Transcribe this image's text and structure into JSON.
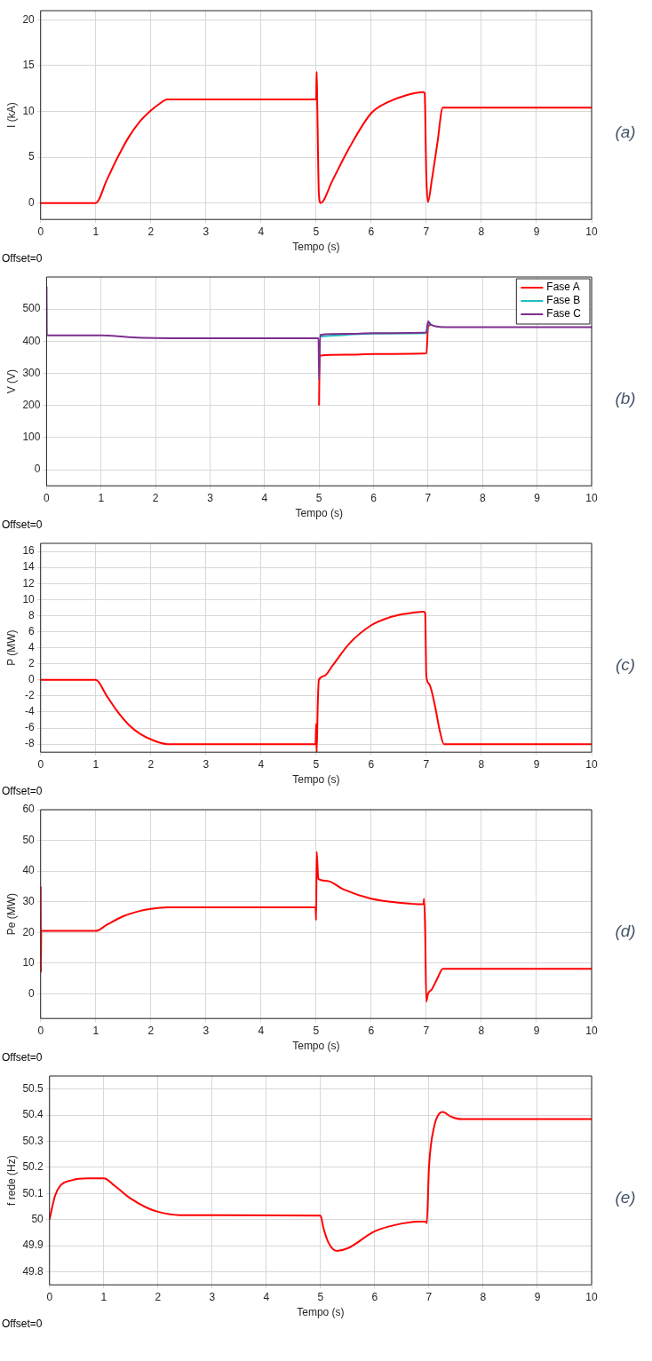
{
  "chart_data": [
    {
      "type": "line",
      "xlabel": "Tempo (s)",
      "ylabel": "I (kA)",
      "annotations": [
        "Offset=0",
        "(a)"
      ],
      "xlim": [
        0,
        10
      ],
      "xticks": [
        0,
        1,
        2,
        3,
        4,
        5,
        6,
        7,
        8,
        9,
        10
      ],
      "ylim": [
        -1.8,
        21
      ],
      "yticks": [
        0,
        5,
        10,
        15,
        20
      ],
      "grid": true,
      "series": [
        {
          "color": "#ff0000",
          "x": [
            0,
            1,
            1.2,
            1.4,
            1.6,
            1.8,
            2,
            2.15,
            2.3,
            5,
            5.01,
            5.02,
            5.05,
            5.08,
            5.3,
            5.6,
            6,
            6.3,
            6.6,
            6.95,
            6.97,
            7.0,
            7.03,
            7.1,
            7.2,
            7.3,
            10
          ],
          "values": [
            0,
            0,
            2.5,
            5,
            7.2,
            8.9,
            10.1,
            10.8,
            11.3,
            11.3,
            14.3,
            11,
            1,
            0,
            2.5,
            6,
            9.8,
            11,
            11.7,
            12.1,
            12,
            3,
            0.1,
            2.5,
            6.5,
            10.4,
            10.4
          ]
        }
      ]
    },
    {
      "type": "line",
      "xlabel": "Tempo (s)",
      "ylabel": "V (V)",
      "annotations": [
        "Offset=0",
        "(b)"
      ],
      "xlim": [
        0,
        10
      ],
      "xticks": [
        0,
        1,
        2,
        3,
        4,
        5,
        6,
        7,
        8,
        9,
        10
      ],
      "ylim": [
        -50,
        600
      ],
      "yticks": [
        0,
        100,
        200,
        300,
        400,
        500
      ],
      "grid": true,
      "legend": "top right",
      "series": [
        {
          "name": "Fase A",
          "color": "#ff0000",
          "x": [
            5,
            5.01,
            5.5,
            6,
            6.97,
            7.0,
            7.05
          ],
          "values": [
            200,
            355,
            358,
            360,
            362,
            445,
            452
          ]
        },
        {
          "name": "Fase B",
          "color": "#1fbfbf",
          "x": [
            5.02,
            5.5,
            6,
            6.97,
            7.0,
            7.05
          ],
          "values": [
            415,
            420,
            424,
            425,
            455,
            452
          ]
        },
        {
          "name": "Fase C",
          "color": "#7e2f8e",
          "x": [
            0,
            0.005,
            1,
            1.5,
            2,
            2.5,
            4.99,
            5,
            5.02,
            5.5,
            6,
            6.97,
            6.98,
            7.0,
            7.05,
            7.3,
            10
          ],
          "values": [
            570,
            418,
            418,
            413,
            410,
            409,
            409,
            280,
            420,
            423,
            425,
            427,
            440,
            462,
            452,
            444,
            444
          ]
        }
      ]
    },
    {
      "type": "line",
      "xlabel": "Tempo (s)",
      "ylabel": "P (MW)",
      "annotations": [
        "Offset=0",
        "(c)"
      ],
      "xlim": [
        0,
        10
      ],
      "xticks": [
        0,
        1,
        2,
        3,
        4,
        5,
        6,
        7,
        8,
        9,
        10
      ],
      "ylim": [
        -9,
        17
      ],
      "yticks": [
        -8,
        -6,
        -4,
        -2,
        0,
        2,
        4,
        6,
        8,
        10,
        12,
        14,
        16
      ],
      "grid": true,
      "series": [
        {
          "color": "#ff0000",
          "x": [
            0,
            1,
            1.2,
            1.4,
            1.6,
            1.8,
            2,
            2.3,
            4.99,
            5.0,
            5.01,
            5.03,
            5.05,
            5.15,
            5.3,
            5.6,
            6,
            6.3,
            6.6,
            6.95,
            6.98,
            7.0,
            7.05,
            7.15,
            7.25,
            7.32,
            10
          ],
          "values": [
            0,
            0,
            -2,
            -4,
            -5.6,
            -6.7,
            -7.4,
            -8,
            -8,
            -5.5,
            -9,
            -3,
            0,
            0.5,
            1.8,
            4.5,
            6.8,
            7.7,
            8.2,
            8.5,
            8.3,
            0.5,
            -0.5,
            -3,
            -6.5,
            -8,
            -8
          ]
        }
      ]
    },
    {
      "type": "line",
      "xlabel": "Tempo (s)",
      "ylabel": "Pe (MW)",
      "annotations": [
        "Offset=0",
        "(d)"
      ],
      "xlim": [
        0,
        10
      ],
      "xticks": [
        0,
        1,
        2,
        3,
        4,
        5,
        6,
        7,
        8,
        9,
        10
      ],
      "ylim": [
        -8,
        60
      ],
      "yticks": [
        0,
        10,
        20,
        30,
        40,
        50,
        60
      ],
      "grid": true,
      "series": [
        {
          "color": "#ff0000",
          "x": [
            0,
            0.005,
            0.01,
            1,
            1.2,
            1.5,
            1.8,
            2,
            2.3,
            4.99,
            5,
            5.01,
            5.04,
            5.2,
            5.5,
            6,
            6.5,
            6.95,
            6.96,
            6.98,
            7.0,
            7.03,
            7.1,
            7.2,
            7.3,
            10
          ],
          "values": [
            35,
            7,
            20.5,
            20.5,
            22.5,
            25.3,
            27,
            27.7,
            28.2,
            28.2,
            24,
            46.3,
            37.5,
            36.8,
            34,
            31,
            29.7,
            29.2,
            31,
            20,
            -2.5,
            0,
            1.5,
            5,
            8.2,
            8.2
          ]
        }
      ]
    },
    {
      "type": "line",
      "xlabel": "Tempo (s)",
      "ylabel": "f rede (Hz)",
      "annotations": [
        "Offset=0",
        "(e)"
      ],
      "xlim": [
        0,
        10
      ],
      "xticks": [
        0,
        1,
        2,
        3,
        4,
        5,
        6,
        7,
        8,
        9,
        10
      ],
      "ylim": [
        49.75,
        50.55
      ],
      "yticks": [
        49.8,
        49.9,
        50,
        50.1,
        50.2,
        50.3,
        50.4,
        50.5
      ],
      "grid": true,
      "series": [
        {
          "color": "#ff0000",
          "x": [
            0,
            0.1,
            0.2,
            0.4,
            0.7,
            1,
            1.2,
            1.5,
            1.8,
            2,
            2.4,
            5,
            5.05,
            5.15,
            5.3,
            5.5,
            6,
            6.5,
            6.95,
            6.96,
            7.0,
            7.1,
            7.2,
            7.25,
            7.4,
            7.6,
            10
          ],
          "values": [
            50,
            50.09,
            50.13,
            50.15,
            50.158,
            50.158,
            50.13,
            50.08,
            50.045,
            50.03,
            50.017,
            50.015,
            49.97,
            49.91,
            49.88,
            49.89,
            49.955,
            49.985,
            49.993,
            49.985,
            50.2,
            50.36,
            50.408,
            50.412,
            50.395,
            50.385,
            50.385
          ]
        }
      ]
    }
  ]
}
